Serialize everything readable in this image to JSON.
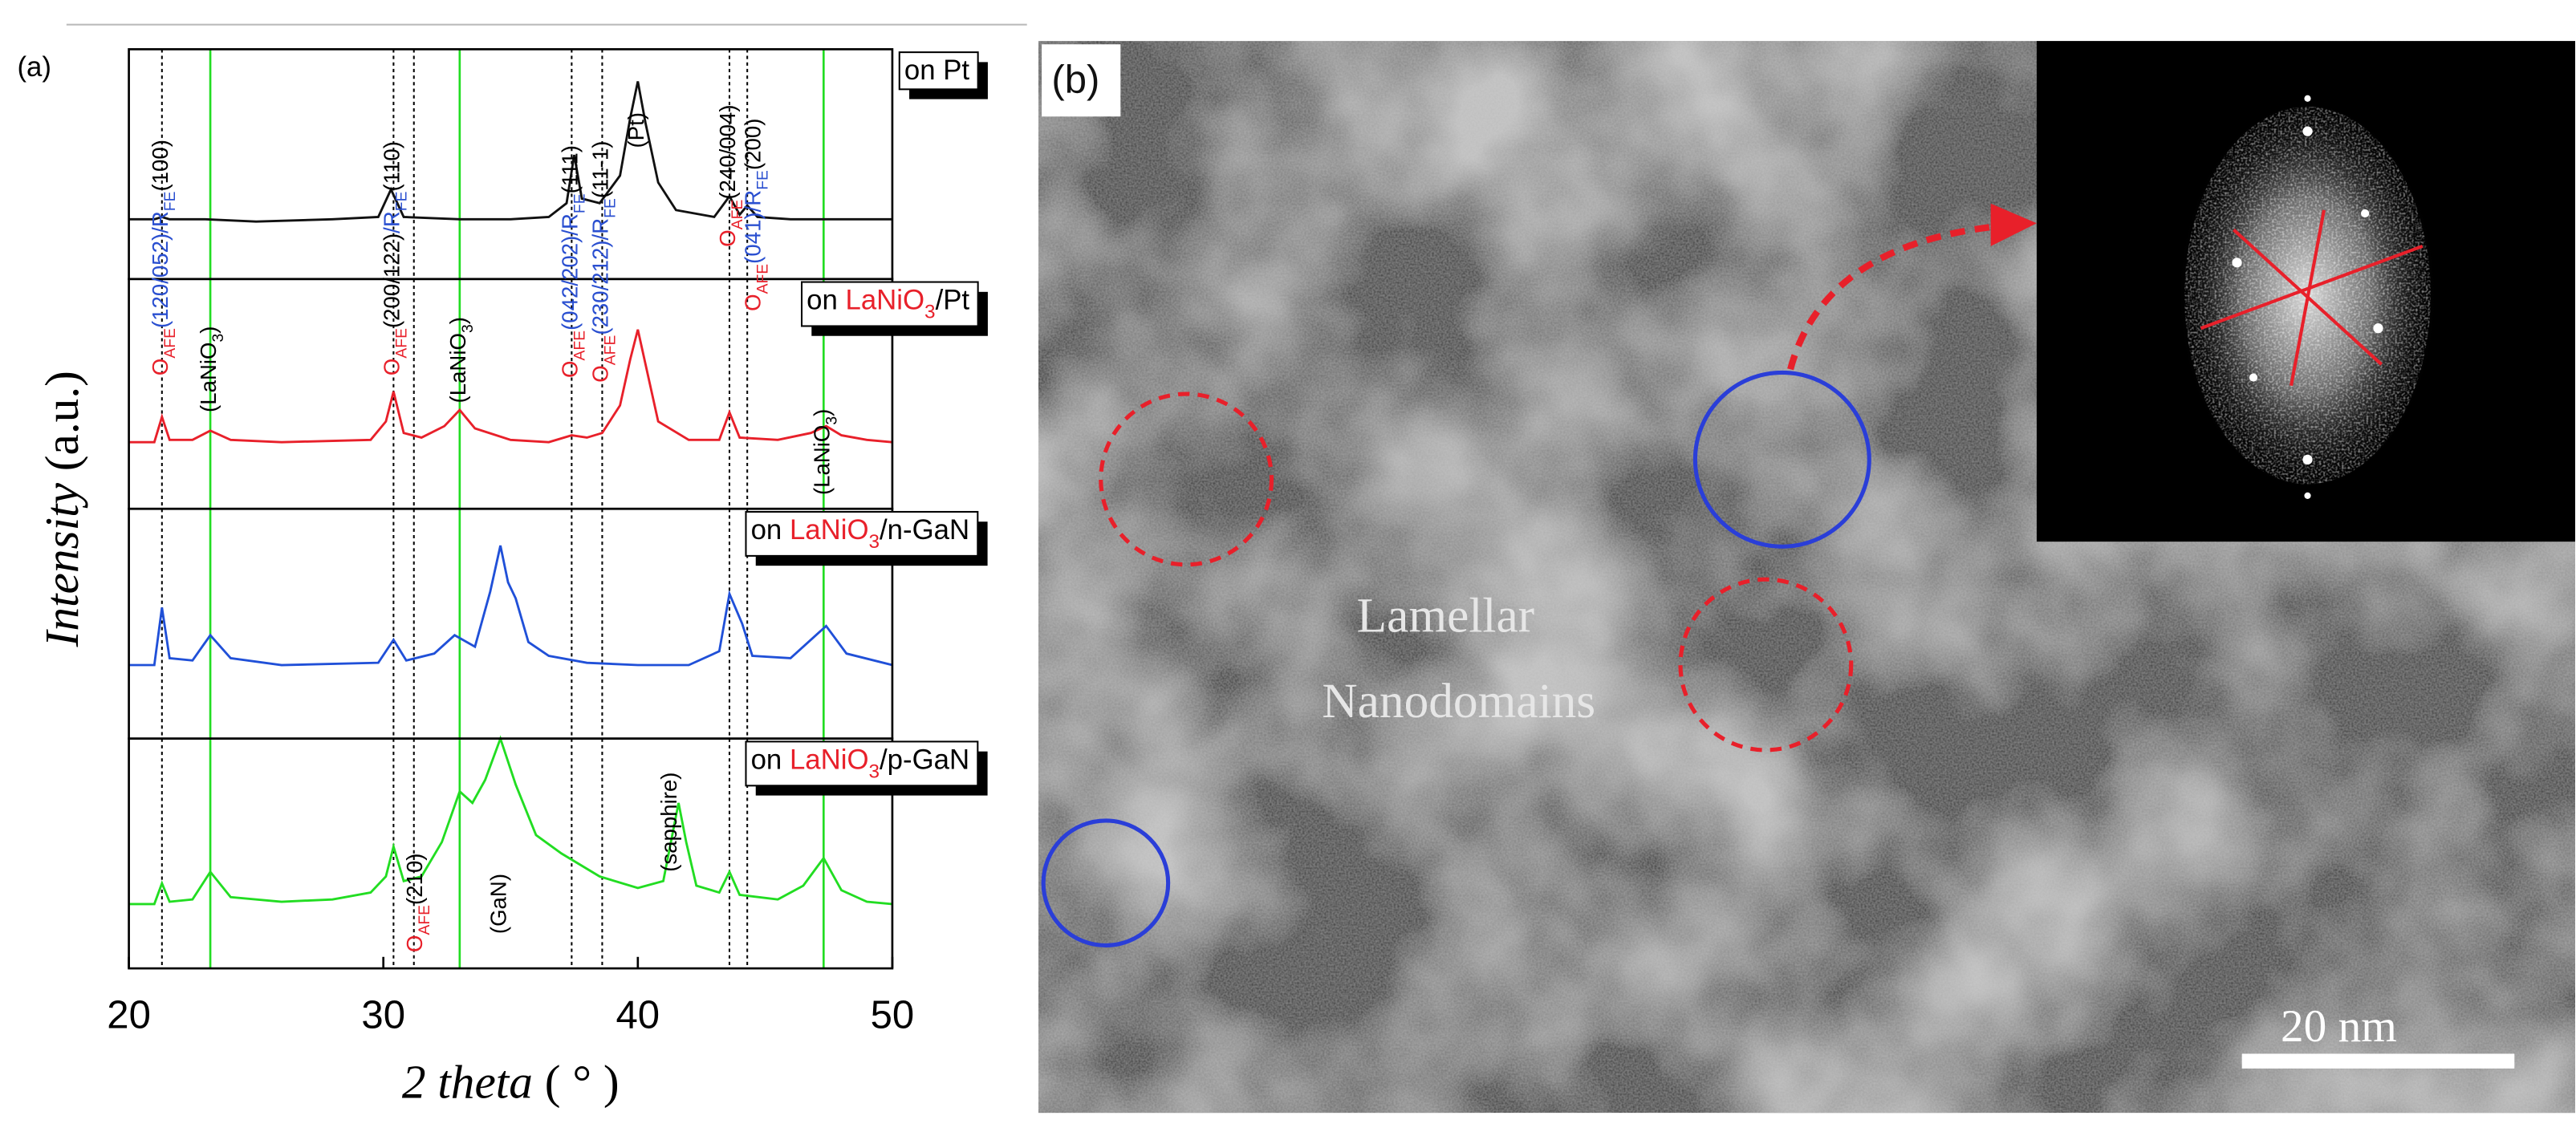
{
  "chart_data": {
    "type": "line",
    "panel_label": "(a)",
    "x_label": [
      {
        "t": "2 theta",
        "i": true
      },
      {
        "t": " ( ° )"
      }
    ],
    "y_label": [
      {
        "t": "Intensity",
        "i": true
      },
      {
        "t": " (a.u.)"
      }
    ],
    "xlim": [
      20,
      50
    ],
    "xticks": [
      20,
      30,
      40,
      50
    ],
    "ylim": [
      0,
      100
    ],
    "vlines": [
      {
        "x": 21.3,
        "color": "#000000",
        "dash": true
      },
      {
        "x": 30.4,
        "color": "#000000",
        "dash": true
      },
      {
        "x": 31.2,
        "color": "#000000",
        "dash": true
      },
      {
        "x": 37.4,
        "color": "#000000",
        "dash": true
      },
      {
        "x": 38.6,
        "color": "#000000",
        "dash": true
      },
      {
        "x": 43.6,
        "color": "#000000",
        "dash": true
      },
      {
        "x": 44.3,
        "color": "#000000",
        "dash": true
      },
      {
        "x": 23.2,
        "color": "#22dd22",
        "dash": false
      },
      {
        "x": 33.0,
        "color": "#22dd22",
        "dash": false
      },
      {
        "x": 47.3,
        "color": "#22dd22",
        "dash": false
      }
    ],
    "series": [
      {
        "name": [
          {
            "t": "on Pt"
          }
        ],
        "color": "#111111",
        "x": [
          20,
          21,
          21.3,
          21.6,
          23,
          25,
          28,
          29.8,
          30.3,
          30.8,
          33,
          35,
          36.5,
          37.2,
          37.5,
          37.8,
          38.5,
          39.3,
          39.7,
          40,
          40.3,
          40.8,
          41.5,
          43,
          43.6,
          44,
          44.3,
          44.7,
          46,
          48,
          50
        ],
        "values": [
          26,
          26,
          27,
          26,
          26,
          25,
          26,
          27,
          39,
          27,
          26,
          26,
          27,
          33,
          54,
          35,
          33,
          45,
          70,
          86,
          68,
          42,
          30,
          27,
          36,
          28,
          32,
          27,
          26,
          26,
          26
        ]
      },
      {
        "name": [
          {
            "t": "on "
          },
          {
            "t": "LaNiO",
            "c": "#e8202a"
          },
          {
            "t": "3",
            "c": "#e8202a",
            "sub": true
          },
          {
            "t": "/Pt"
          }
        ],
        "color": "#e8202a",
        "x": [
          20,
          21,
          21.3,
          21.6,
          22.5,
          23.2,
          24,
          26,
          29.5,
          30.1,
          30.4,
          30.8,
          31.5,
          32.4,
          33,
          33.6,
          35,
          36.5,
          37.4,
          38,
          38.6,
          39.3,
          39.7,
          40,
          40.3,
          40.8,
          42,
          43.2,
          43.6,
          44,
          45.5,
          46.8,
          47.4,
          48,
          49,
          50
        ],
        "values": [
          29,
          29,
          40,
          30,
          30,
          34,
          30,
          29,
          30,
          38,
          51,
          33,
          31,
          36,
          43,
          35,
          30,
          29,
          32,
          31,
          33,
          45,
          65,
          78,
          63,
          38,
          30,
          30,
          42,
          31,
          30,
          33,
          36,
          32,
          30,
          29
        ]
      },
      {
        "name": [
          {
            "t": "on "
          },
          {
            "t": "LaNiO",
            "c": "#e8202a"
          },
          {
            "t": "3",
            "c": "#e8202a",
            "sub": true
          },
          {
            "t": "/n-GaN"
          }
        ],
        "color": "#2050d8",
        "x": [
          20,
          21,
          21.3,
          21.6,
          22.5,
          23.2,
          24,
          26,
          29.8,
          30.4,
          30.9,
          32,
          32.8,
          33.6,
          34.2,
          34.6,
          34.9,
          35.2,
          35.7,
          36.5,
          38,
          40,
          42,
          43.2,
          43.6,
          44.1,
          44.5,
          46,
          47.4,
          48.2,
          50
        ],
        "values": [
          32,
          32,
          57,
          35,
          34,
          45,
          35,
          32,
          33,
          43,
          34,
          37,
          45,
          40,
          64,
          84,
          68,
          61,
          42,
          36,
          33,
          32,
          32,
          38,
          63,
          50,
          36,
          35,
          49,
          37,
          32
        ]
      },
      {
        "name": [
          {
            "t": "on "
          },
          {
            "t": "LaNiO",
            "c": "#e8202a"
          },
          {
            "t": "3",
            "c": "#e8202a",
            "sub": true
          },
          {
            "t": "/p-GaN"
          }
        ],
        "color": "#22dd22",
        "x": [
          20,
          21,
          21.3,
          21.6,
          22.5,
          23.2,
          24,
          26,
          28,
          29.5,
          30.1,
          30.4,
          30.8,
          31.5,
          32.3,
          33,
          33.5,
          34,
          34.6,
          35.2,
          36,
          37,
          38.5,
          40,
          41,
          41.6,
          41.9,
          42.3,
          43.2,
          43.6,
          44,
          45.5,
          46.5,
          47.3,
          48,
          49,
          50
        ],
        "values": [
          28,
          28,
          37,
          29,
          30,
          42,
          31,
          29,
          30,
          33,
          40,
          53,
          38,
          40,
          55,
          77,
          72,
          82,
          100,
          80,
          58,
          50,
          40,
          35,
          38,
          72,
          55,
          36,
          33,
          42,
          32,
          30,
          36,
          48,
          34,
          29,
          28
        ]
      }
    ],
    "annotations": [
      {
        "x": 21.3,
        "panel": 1,
        "y": 58,
        "segments": [
          {
            "t": "O",
            "c": "#e8202a"
          },
          {
            "t": "AFE",
            "c": "#e8202a",
            "sub": true
          },
          {
            "t": "(120/052)/R",
            "c": "#2a4fd0"
          },
          {
            "t": "FE",
            "c": "#2a4fd0",
            "sub": true
          },
          {
            "t": "(100)"
          }
        ]
      },
      {
        "x": 30.4,
        "panel": 1,
        "y": 58,
        "segments": [
          {
            "t": "O",
            "c": "#e8202a"
          },
          {
            "t": "AFE",
            "c": "#e8202a",
            "sub": true
          },
          {
            "t": "(200/122)"
          },
          {
            "t": "/R",
            "c": "#2a4fd0"
          },
          {
            "t": "FE",
            "c": "#2a4fd0",
            "sub": true
          },
          {
            "t": "(110)"
          }
        ]
      },
      {
        "x": 37.4,
        "panel": 1,
        "y": 57,
        "segments": [
          {
            "t": "O",
            "c": "#e8202a"
          },
          {
            "t": "AFE",
            "c": "#e8202a",
            "sub": true
          },
          {
            "t": "(042/202)/R",
            "c": "#2a4fd0"
          },
          {
            "t": "FE",
            "c": "#2a4fd0",
            "sub": true
          },
          {
            "t": "(111)"
          }
        ]
      },
      {
        "x": 38.6,
        "panel": 1,
        "y": 55,
        "segments": [
          {
            "t": "O",
            "c": "#e8202a"
          },
          {
            "t": "AFE",
            "c": "#e8202a",
            "sub": true
          },
          {
            "t": "(230/212)/R",
            "c": "#2a4fd0"
          },
          {
            "t": "FE",
            "c": "#2a4fd0",
            "sub": true
          },
          {
            "t": "(11-1)"
          }
        ]
      },
      {
        "x": 40.0,
        "panel": 0,
        "y": 57,
        "segments": [
          {
            "t": "(Pt)"
          }
        ]
      },
      {
        "x": 43.6,
        "panel": 0,
        "y": 14,
        "segments": [
          {
            "t": "O",
            "c": "#e8202a"
          },
          {
            "t": "AFE",
            "c": "#e8202a",
            "sub": true
          },
          {
            "t": "(240/004)"
          }
        ]
      },
      {
        "x": 44.6,
        "panel": 1,
        "y": 86,
        "segments": [
          {
            "t": "O",
            "c": "#e8202a"
          },
          {
            "t": "AFE",
            "c": "#e8202a",
            "sub": true
          },
          {
            "t": "(041)/R",
            "c": "#2a4fd0"
          },
          {
            "t": "FE",
            "c": "#2a4fd0",
            "sub": true
          },
          {
            "t": "(200)"
          }
        ]
      },
      {
        "x": 23.2,
        "panel": 1,
        "y": 42,
        "segments": [
          {
            "t": "(LaNiO"
          },
          {
            "t": "3",
            "sub": true
          },
          {
            "t": ")"
          }
        ]
      },
      {
        "x": 33.0,
        "panel": 1,
        "y": 46,
        "segments": [
          {
            "t": "(LaNiO"
          },
          {
            "t": "3",
            "sub": true
          },
          {
            "t": ")"
          }
        ]
      },
      {
        "x": 47.3,
        "panel": 1,
        "y": 6,
        "segments": [
          {
            "t": "(LaNiO"
          },
          {
            "t": "3",
            "sub": true
          },
          {
            "t": ")"
          }
        ]
      },
      {
        "x": 31.3,
        "panel": 3,
        "y": 7,
        "segments": [
          {
            "t": "O",
            "c": "#e8202a"
          },
          {
            "t": "AFE",
            "c": "#e8202a",
            "sub": true
          },
          {
            "t": "(210)"
          }
        ]
      },
      {
        "x": 34.6,
        "panel": 3,
        "y": 15,
        "segments": [
          {
            "t": "(GaN)"
          }
        ]
      },
      {
        "x": 41.3,
        "panel": 3,
        "y": 42,
        "segments": [
          {
            "t": "(sapphire)"
          }
        ]
      }
    ]
  },
  "image_panel": {
    "label": "(b)",
    "caption_lines": [
      "Lamellar",
      "Nanodomains"
    ],
    "scale_bar": "20 nm"
  }
}
